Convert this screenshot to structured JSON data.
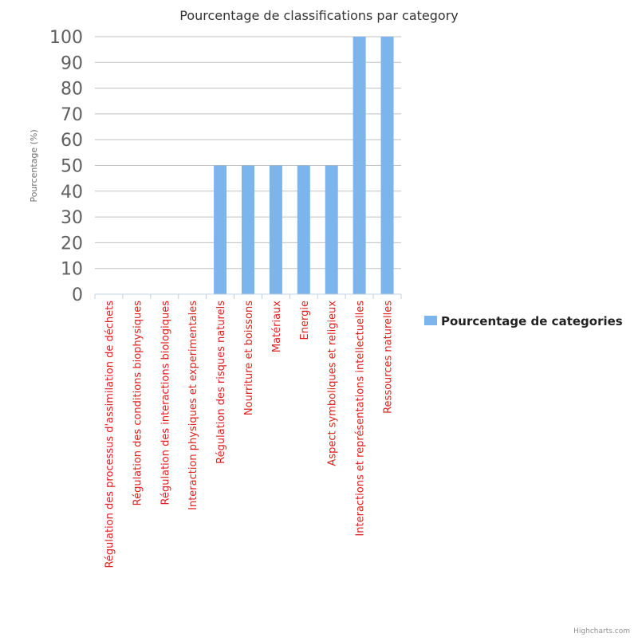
{
  "chart_data": {
    "type": "bar",
    "title": "Pourcentage de classifications par category",
    "xlabel": "",
    "ylabel": "Pourcentage (%)",
    "ylim": [
      0,
      100
    ],
    "yticks": [
      0,
      10,
      20,
      30,
      40,
      50,
      60,
      70,
      80,
      90,
      100
    ],
    "grid": true,
    "legend_position": "right",
    "categories": [
      "Régulation des processus d'assimilation de déchets",
      "Régulation des conditions biophysiques",
      "Régulation des interactions biologiques",
      "Interaction physiques et experimentales",
      "Régulation des risques naturels",
      "Nourriture et boissons",
      "Matériaux",
      "Energie",
      "Aspect symboliques et religieux",
      "Interactions et représentations intellectuelles",
      "Ressources naturelles"
    ],
    "series": [
      {
        "name": "Pourcentage de categories",
        "values": [
          0,
          0,
          0,
          0,
          50,
          50,
          50,
          50,
          50,
          100,
          100
        ]
      }
    ],
    "colors": {
      "bar": "#7cb5ec",
      "category_label": "#e02020",
      "tick_label": "#606060",
      "grid": "#c0c0c0",
      "title": "#333333",
      "axis_title": "#707070"
    }
  },
  "credits": "Highcharts.com"
}
